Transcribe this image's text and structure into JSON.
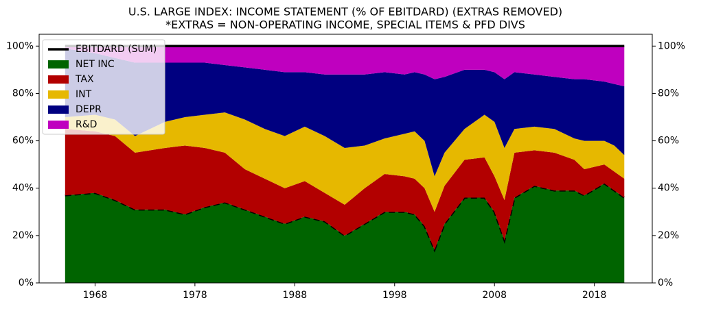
{
  "chart_data": {
    "type": "stacked_area",
    "title": "U.S. LARGE INDEX: INCOME STATEMENT (% OF EBITDARD) (EXTRAS REMOVED)",
    "subtitle": "*EXTRAS = NON-OPERATING INCOME, SPECIAL ITEMS & PFD DIVS",
    "x": [
      1965,
      1968,
      1970,
      1972,
      1975,
      1977,
      1979,
      1981,
      1983,
      1985,
      1987,
      1989,
      1991,
      1993,
      1995,
      1997,
      1999,
      2000,
      2001,
      2002,
      2003,
      2005,
      2007,
      2008,
      2009,
      2010,
      2012,
      2014,
      2016,
      2017,
      2019,
      2020,
      2021
    ],
    "series": [
      {
        "name": "NET INC",
        "color": "#006400",
        "values": [
          37,
          38,
          35,
          31,
          31,
          29,
          32,
          34,
          31,
          28,
          25,
          28,
          26,
          20,
          25,
          30,
          30,
          29,
          24,
          14,
          25,
          36,
          36,
          30,
          18,
          36,
          41,
          39,
          39,
          37,
          42,
          39,
          36
        ]
      },
      {
        "name": "TAX",
        "color": "#b20000",
        "values": [
          28,
          26,
          27,
          24,
          26,
          29,
          25,
          21,
          17,
          16,
          15,
          15,
          12,
          13,
          15,
          16,
          15,
          15,
          16,
          16,
          16,
          16,
          17,
          15,
          17,
          19,
          15,
          16,
          13,
          11,
          8,
          8,
          8
        ]
      },
      {
        "name": "INT",
        "color": "#e6b800",
        "values": [
          5,
          7,
          7,
          7,
          11,
          12,
          14,
          17,
          21,
          21,
          22,
          23,
          24,
          24,
          18,
          15,
          18,
          20,
          20,
          15,
          14,
          13,
          18,
          23,
          22,
          10,
          10,
          10,
          9,
          12,
          10,
          11,
          10
        ]
      },
      {
        "name": "DEPR",
        "color": "#000080",
        "values": [
          29,
          26,
          26,
          31,
          25,
          23,
          22,
          20,
          22,
          25,
          27,
          23,
          26,
          31,
          30,
          28,
          25,
          25,
          28,
          41,
          32,
          25,
          19,
          21,
          29,
          24,
          22,
          22,
          25,
          26,
          25,
          26,
          29
        ]
      },
      {
        "name": "R&D",
        "color": "#bf00bf",
        "values": [
          1,
          3,
          5,
          7,
          7,
          7,
          7,
          8,
          9,
          10,
          11,
          11,
          12,
          12,
          12,
          11,
          12,
          11,
          12,
          14,
          13,
          10,
          10,
          11,
          14,
          11,
          12,
          13,
          14,
          14,
          15,
          16,
          17
        ]
      }
    ],
    "total": {
      "name": "EBITDARD (SUM)",
      "color": "#000000",
      "values": [
        100,
        100,
        100,
        100,
        100,
        100,
        100,
        100,
        100,
        100,
        100,
        100,
        100,
        100,
        100,
        100,
        100,
        100,
        100,
        100,
        100,
        100,
        100,
        100,
        100,
        100,
        100,
        100,
        100,
        100,
        100,
        100,
        100
      ]
    },
    "xlim": [
      1962.4,
      2023.8
    ],
    "xticks": [
      1968,
      1978,
      1988,
      1998,
      2008,
      2018
    ],
    "ylim": [
      0,
      105
    ],
    "yticks": [
      {
        "value": 0,
        "label": "0%"
      },
      {
        "value": 20,
        "label": "20%"
      },
      {
        "value": 40,
        "label": "40%"
      },
      {
        "value": 60,
        "label": "60%"
      },
      {
        "value": 80,
        "label": "80%"
      },
      {
        "value": 100,
        "label": "100%"
      }
    ],
    "y2lim": [
      0,
      105
    ],
    "y2ticks": [
      {
        "value": 0,
        "label": "0%"
      },
      {
        "value": 20,
        "label": "20%"
      },
      {
        "value": 40,
        "label": "40%"
      },
      {
        "value": 60,
        "label": "60%"
      },
      {
        "value": 80,
        "label": "80%"
      },
      {
        "value": 100,
        "label": "100%"
      }
    ],
    "legend": "upper left"
  }
}
